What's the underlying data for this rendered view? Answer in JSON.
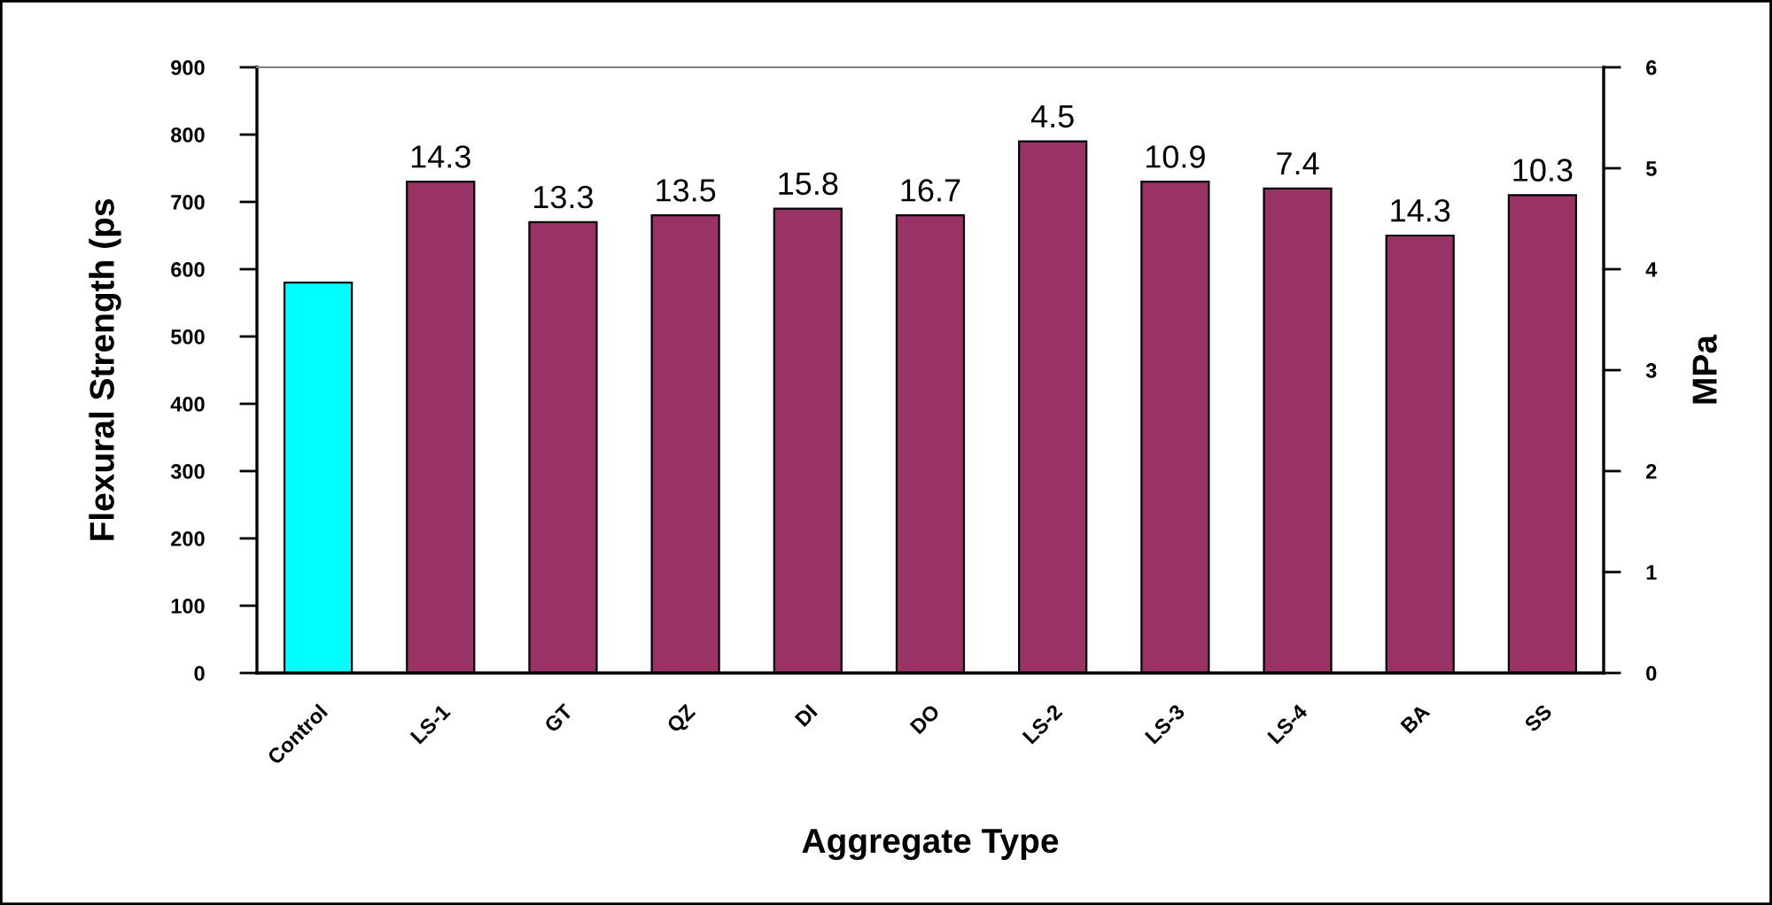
{
  "chart_data": {
    "type": "bar",
    "xlabel": "Aggregate Type",
    "ylabel": "Flexural Strength (ps",
    "y2label": "MPa",
    "categories": [
      "Control",
      "LS-1",
      "GT",
      "QZ",
      "DI",
      "DO",
      "LS-2",
      "LS-3",
      "LS-4",
      "BA",
      "SS"
    ],
    "values": [
      580,
      730,
      670,
      680,
      690,
      680,
      790,
      730,
      720,
      650,
      710
    ],
    "colors": [
      "#00ffff",
      "#993366",
      "#993366",
      "#993366",
      "#993366",
      "#993366",
      "#993366",
      "#993366",
      "#993366",
      "#993366",
      "#993366"
    ],
    "ylim": [
      0,
      900
    ],
    "yticks": [
      0,
      100,
      200,
      300,
      400,
      500,
      600,
      700,
      800,
      900
    ],
    "y2lim": [
      0,
      6
    ],
    "y2ticks": [
      0,
      1,
      2,
      3,
      4,
      5,
      6
    ],
    "annotations": [
      {
        "text": "14.3",
        "x": "LS-1",
        "y": 730
      },
      {
        "text": "13.3",
        "x": "GT",
        "y": 670
      },
      {
        "text": "13.5",
        "x": "QZ",
        "y": 680
      },
      {
        "text": "15.8",
        "x": "DI",
        "y": 690
      },
      {
        "text": "16.7",
        "x": "DO",
        "y": 680
      },
      {
        "text": "4.5",
        "x": "LS-2",
        "y": 790
      },
      {
        "text": "10.9",
        "x": "LS-3",
        "y": 730
      },
      {
        "text": "7.4",
        "x": "LS-4",
        "y": 720
      },
      {
        "text": "14.3",
        "x": "BA",
        "y": 650
      },
      {
        "text": "10.3",
        "x": "SS",
        "y": 710
      }
    ]
  }
}
